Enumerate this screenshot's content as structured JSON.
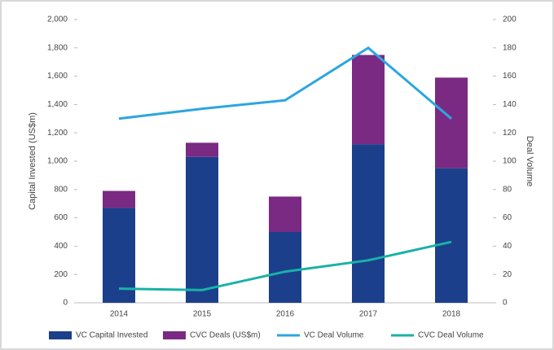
{
  "chart_data": {
    "type": "bar",
    "categories": [
      "2014",
      "2015",
      "2016",
      "2017",
      "2018"
    ],
    "series": [
      {
        "name": "VC Capital Invested",
        "color": "#1c3f8c",
        "type": "bar",
        "values": [
          670,
          1030,
          500,
          1120,
          950
        ]
      },
      {
        "name": "CVC Deals (US$m)",
        "color": "#7a2a82",
        "type": "bar",
        "values": [
          120,
          100,
          250,
          630,
          640
        ]
      },
      {
        "name": "VC Deal Volume",
        "color": "#2ba6df",
        "type": "line",
        "axis": "y2",
        "values": [
          130,
          137,
          143,
          180,
          130
        ]
      },
      {
        "name": "CVC Deal Volume",
        "color": "#19b2a6",
        "type": "line",
        "axis": "y2",
        "values": [
          10,
          9,
          22,
          30,
          43
        ]
      }
    ],
    "ylabel": "Capital Invested (US$m)",
    "y2label": "Deal Volume",
    "ylim": [
      0,
      2000
    ],
    "yticks": [
      0,
      200,
      400,
      600,
      800,
      {
        "value": 1000,
        "label": "1,000"
      },
      {
        "value": 1200,
        "label": "1,200"
      },
      {
        "value": 1400,
        "label": "1,400"
      },
      {
        "value": 1600,
        "label": "1,600"
      },
      {
        "value": 1800,
        "label": "1,800"
      },
      {
        "value": 2000,
        "label": "2,000"
      }
    ],
    "y2lim": [
      0,
      200
    ],
    "y2ticks": [
      0,
      20,
      40,
      60,
      80,
      100,
      120,
      140,
      160,
      180,
      200
    ],
    "legend": "bottom"
  }
}
